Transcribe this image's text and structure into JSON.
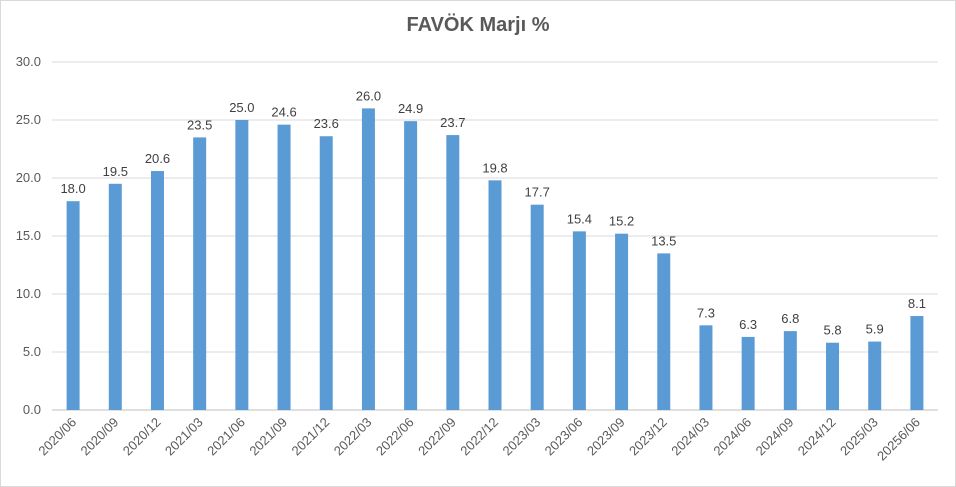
{
  "chart_data": {
    "type": "bar",
    "title": "FAVÖK Marjı %",
    "xlabel": "",
    "ylabel": "",
    "ylim": [
      0,
      30
    ],
    "yticks": [
      "0.0",
      "5.0",
      "10.0",
      "15.0",
      "20.0",
      "25.0",
      "30.0"
    ],
    "grid": true,
    "legend": "none",
    "bar_color": "#5b9bd5",
    "categories": [
      "2020/06",
      "2020/09",
      "2020/12",
      "2021/03",
      "2021/06",
      "2021/09",
      "2021/12",
      "2022/03",
      "2022/06",
      "2022/09",
      "2022/12",
      "2023/03",
      "2023/06",
      "2023/09",
      "2023/12",
      "2024/03",
      "2024/06",
      "2024/09",
      "2024/12",
      "2025/03",
      "20256/06"
    ],
    "values": [
      18.0,
      19.5,
      20.6,
      23.5,
      25.0,
      24.6,
      23.6,
      26.0,
      24.9,
      23.7,
      19.8,
      17.7,
      15.4,
      15.2,
      13.5,
      7.3,
      6.3,
      6.8,
      5.8,
      5.9,
      8.1
    ],
    "value_labels": [
      "18.0",
      "19.5",
      "20.6",
      "23.5",
      "25.0",
      "24.6",
      "23.6",
      "26.0",
      "24.9",
      "23.7",
      "19.8",
      "17.7",
      "15.4",
      "15.2",
      "13.5",
      "7.3",
      "6.3",
      "6.8",
      "5.8",
      "5.9",
      "8.1"
    ]
  }
}
